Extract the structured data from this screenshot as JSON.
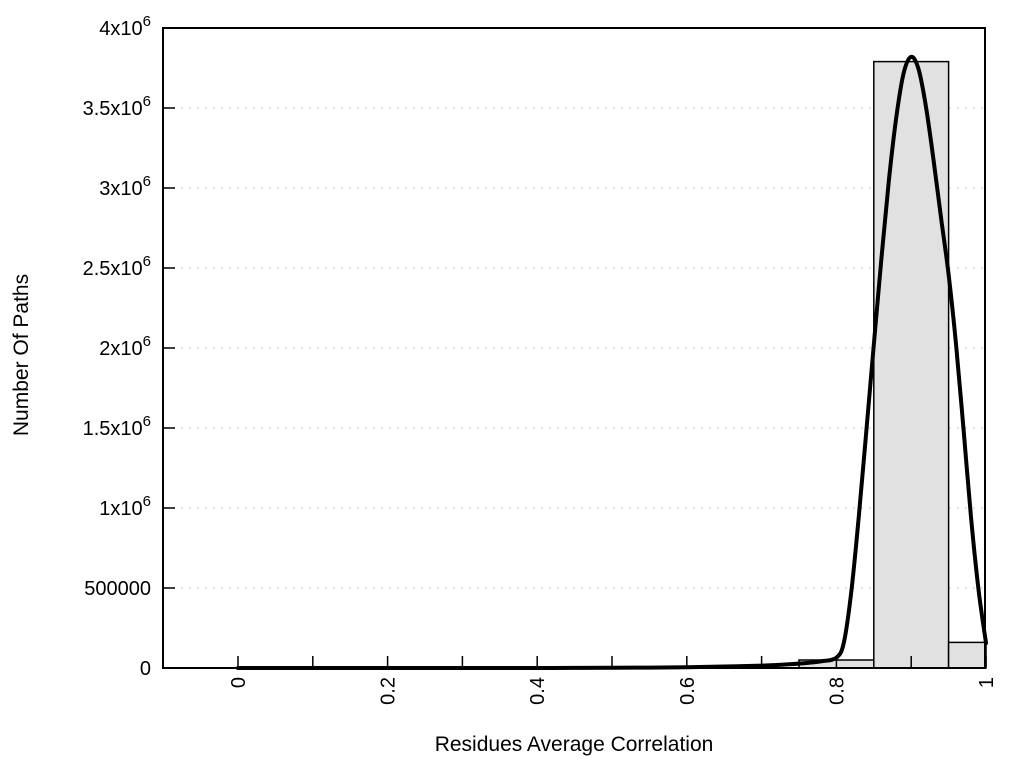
{
  "chart_data": {
    "type": "bar",
    "subtype": "histogram-with-smoothed-curve",
    "title": "",
    "xlabel": "Residues Average Correlation",
    "ylabel": "Number Of Paths",
    "xlim": [
      -0.1,
      1.0
    ],
    "ylim": [
      0,
      4000000
    ],
    "grid": "horizontal-dotted",
    "legend": "none",
    "colors": {
      "bar_fill": "#e1e1e1",
      "bar_stroke": "#000000",
      "curve": "#000000",
      "grid": "#c9c9c9",
      "axis": "#000000",
      "background": "#ffffff"
    },
    "x_ticks_minor": [
      0,
      0.1,
      0.2,
      0.3,
      0.4,
      0.5,
      0.6,
      0.7,
      0.8,
      0.9,
      1.0
    ],
    "x_ticks": [
      {
        "value": 0,
        "label": "0"
      },
      {
        "value": 0.2,
        "label": "0.2"
      },
      {
        "value": 0.4,
        "label": "0.4"
      },
      {
        "value": 0.6,
        "label": "0.6"
      },
      {
        "value": 0.8,
        "label": "0.8"
      },
      {
        "value": 1.0,
        "label": "1"
      }
    ],
    "y_ticks": [
      {
        "value": 0,
        "label": "0"
      },
      {
        "value": 500000,
        "label": "500000"
      },
      {
        "value": 1000000,
        "label": "1x10^6"
      },
      {
        "value": 1500000,
        "label": "1.5x10^6"
      },
      {
        "value": 2000000,
        "label": "2x10^6"
      },
      {
        "value": 2500000,
        "label": "2.5x10^6"
      },
      {
        "value": 3000000,
        "label": "3x10^6"
      },
      {
        "value": 3500000,
        "label": "3.5x10^6"
      },
      {
        "value": 4000000,
        "label": "4x10^6"
      }
    ],
    "bars": [
      {
        "bin_start": 0.75,
        "bin_end": 0.85,
        "count": 50000
      },
      {
        "bin_start": 0.85,
        "bin_end": 0.95,
        "count": 3790000
      },
      {
        "bin_start": 0.95,
        "bin_end": 1.0,
        "count": 160000
      }
    ],
    "curve_series": {
      "name": "smoothed-frequency-curve",
      "points": [
        [
          0.0,
          0
        ],
        [
          0.05,
          0
        ],
        [
          0.1,
          0
        ],
        [
          0.15,
          0
        ],
        [
          0.2,
          0
        ],
        [
          0.25,
          0
        ],
        [
          0.3,
          0
        ],
        [
          0.35,
          0
        ],
        [
          0.4,
          0
        ],
        [
          0.45,
          500
        ],
        [
          0.5,
          1200
        ],
        [
          0.55,
          2500
        ],
        [
          0.6,
          5000
        ],
        [
          0.65,
          9000
        ],
        [
          0.7,
          15000
        ],
        [
          0.72,
          19000
        ],
        [
          0.74,
          24000
        ],
        [
          0.76,
          31000
        ],
        [
          0.78,
          42000
        ],
        [
          0.8,
          65000
        ],
        [
          0.81,
          160000
        ],
        [
          0.82,
          480000
        ],
        [
          0.83,
          950000
        ],
        [
          0.84,
          1480000
        ],
        [
          0.85,
          2020000
        ],
        [
          0.86,
          2550000
        ],
        [
          0.87,
          3040000
        ],
        [
          0.88,
          3440000
        ],
        [
          0.89,
          3720000
        ],
        [
          0.9,
          3820000
        ],
        [
          0.91,
          3740000
        ],
        [
          0.92,
          3500000
        ],
        [
          0.93,
          3170000
        ],
        [
          0.94,
          2810000
        ],
        [
          0.95,
          2460000
        ],
        [
          0.96,
          2020000
        ],
        [
          0.97,
          1490000
        ],
        [
          0.98,
          940000
        ],
        [
          0.99,
          490000
        ],
        [
          1.0,
          156000
        ]
      ]
    }
  }
}
